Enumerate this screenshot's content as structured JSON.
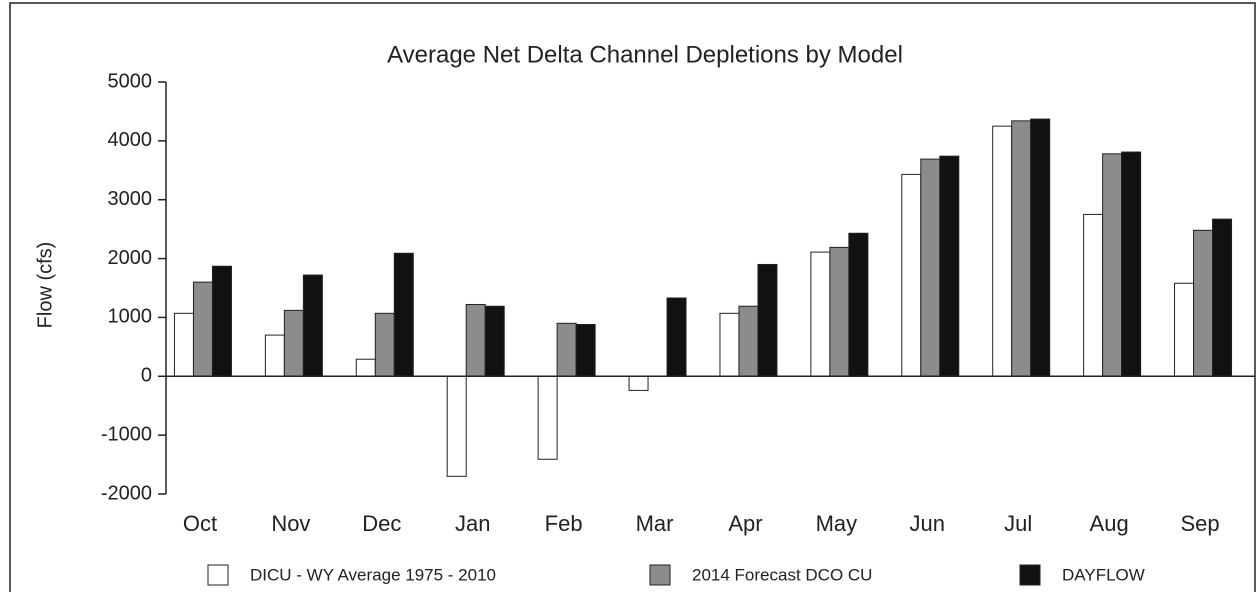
{
  "chart_data": {
    "type": "bar",
    "title": "Average Net Delta Channel Depletions by Model",
    "y_label": "Flow (cfs)",
    "categories": [
      "Oct",
      "Nov",
      "Dec",
      "Jan",
      "Feb",
      "Mar",
      "Apr",
      "May",
      "Jun",
      "Jul",
      "Aug",
      "Sep"
    ],
    "series": [
      {
        "name": "DICU - WY Average 1975 - 2010",
        "color": "#ffffff",
        "values": [
          1070,
          700,
          290,
          -1700,
          -1410,
          -240,
          1070,
          2110,
          3430,
          4250,
          2750,
          1580
        ]
      },
      {
        "name": "2014 Forecast DCO CU",
        "color": "#8c8c8c",
        "values": [
          1600,
          1120,
          1070,
          1220,
          900,
          0,
          1190,
          2190,
          3690,
          4340,
          3780,
          2480
        ]
      },
      {
        "name": "DAYFLOW",
        "color": "#111111",
        "values": [
          1870,
          1720,
          2090,
          1190,
          880,
          1330,
          1900,
          2430,
          3740,
          4370,
          3810,
          2670
        ]
      }
    ],
    "ylim": [
      -2000,
      5000
    ],
    "yticks": [
      -2000,
      -1000,
      0,
      1000,
      2000,
      3000,
      4000,
      5000
    ],
    "legend": "bottom"
  }
}
